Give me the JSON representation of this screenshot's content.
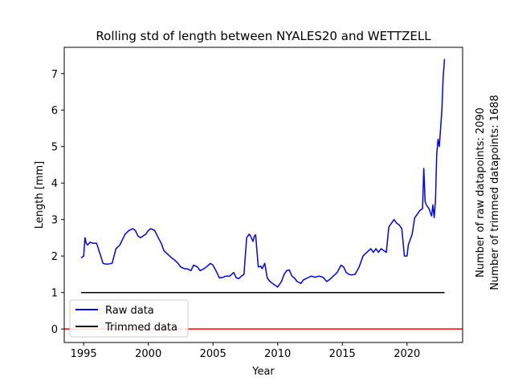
{
  "chart_data": {
    "type": "line",
    "title": "Rolling std of length between NYALES20 and WETTZELL",
    "xlabel": "Year",
    "ylabel": "Length [mm]",
    "xlim": [
      1993.5,
      2024.3
    ],
    "ylim": [
      -0.37,
      7.72
    ],
    "x_ticks": [
      1995,
      2000,
      2005,
      2010,
      2015,
      2020
    ],
    "y_ticks": [
      0,
      1,
      2,
      3,
      4,
      5,
      6,
      7
    ],
    "grid": false,
    "legend_position": "lower-left",
    "side_annotations": [
      "Number of raw datapoints: 2090",
      "Number of trimmed datapoints: 1688"
    ],
    "series": [
      {
        "name": "Raw data",
        "color": "#0000ff",
        "x": [
          1994.8,
          1995.0,
          1995.1,
          1995.2,
          1995.3,
          1995.5,
          1995.7,
          1996.0,
          1996.5,
          1996.7,
          1996.9,
          1997.2,
          1997.5,
          1997.8,
          1998.0,
          1998.2,
          1998.5,
          1998.8,
          1999.0,
          1999.2,
          1999.4,
          1999.6,
          1999.8,
          2000.0,
          2000.2,
          2000.5,
          2000.7,
          2001.0,
          2001.2,
          2001.5,
          2001.8,
          2002.0,
          2002.3,
          2002.5,
          2002.8,
          2003.0,
          2003.3,
          2003.5,
          2003.8,
          2004.0,
          2004.3,
          2004.5,
          2004.8,
          2005.0,
          2005.3,
          2005.5,
          2005.8,
          2006.0,
          2006.3,
          2006.6,
          2006.8,
          2007.0,
          2007.2,
          2007.4,
          2007.6,
          2007.8,
          2007.9,
          2008.1,
          2008.2,
          2008.3,
          2008.5,
          2008.7,
          2008.8,
          2009.0,
          2009.2,
          2009.4,
          2009.6,
          2009.8,
          2010.0,
          2010.3,
          2010.5,
          2010.7,
          2010.9,
          2011.1,
          2011.3,
          2011.5,
          2011.8,
          2012.0,
          2012.3,
          2012.6,
          2012.9,
          2013.2,
          2013.5,
          2013.8,
          2014.0,
          2014.3,
          2014.6,
          2014.9,
          2015.1,
          2015.3,
          2015.5,
          2015.7,
          2016.0,
          2016.3,
          2016.6,
          2016.9,
          2017.2,
          2017.4,
          2017.6,
          2017.8,
          2018.0,
          2018.2,
          2018.4,
          2018.6,
          2018.8,
          2019.0,
          2019.2,
          2019.4,
          2019.6,
          2019.8,
          2020.0,
          2020.1,
          2020.2,
          2020.4,
          2020.6,
          2020.8,
          2021.0,
          2021.2,
          2021.3,
          2021.4,
          2021.5,
          2021.7,
          2021.9,
          2022.0,
          2022.1,
          2022.2,
          2022.3,
          2022.4,
          2022.5,
          2022.6,
          2022.7,
          2022.8,
          2022.9
        ],
        "values": [
          1.95,
          2.0,
          2.5,
          2.35,
          2.3,
          2.38,
          2.35,
          2.35,
          1.8,
          1.78,
          1.78,
          1.8,
          2.2,
          2.3,
          2.45,
          2.6,
          2.7,
          2.75,
          2.7,
          2.55,
          2.5,
          2.55,
          2.6,
          2.7,
          2.75,
          2.7,
          2.55,
          2.35,
          2.15,
          2.05,
          1.95,
          1.9,
          1.8,
          1.7,
          1.65,
          1.65,
          1.6,
          1.75,
          1.7,
          1.6,
          1.65,
          1.7,
          1.8,
          1.75,
          1.55,
          1.4,
          1.42,
          1.45,
          1.45,
          1.55,
          1.4,
          1.38,
          1.45,
          1.5,
          2.5,
          2.6,
          2.55,
          2.4,
          2.55,
          2.58,
          1.7,
          1.72,
          1.65,
          1.8,
          1.4,
          1.3,
          1.25,
          1.2,
          1.15,
          1.3,
          1.5,
          1.6,
          1.62,
          1.45,
          1.4,
          1.3,
          1.25,
          1.35,
          1.4,
          1.45,
          1.42,
          1.45,
          1.42,
          1.3,
          1.35,
          1.45,
          1.55,
          1.75,
          1.7,
          1.55,
          1.5,
          1.48,
          1.5,
          1.7,
          2.0,
          2.1,
          2.2,
          2.1,
          2.2,
          2.1,
          2.2,
          2.15,
          2.1,
          2.8,
          2.9,
          3.0,
          2.9,
          2.85,
          2.75,
          2.0,
          2.0,
          2.3,
          2.4,
          2.6,
          3.05,
          3.15,
          3.25,
          3.3,
          4.4,
          3.5,
          3.4,
          3.3,
          3.1,
          3.4,
          3.05,
          3.5,
          4.8,
          5.2,
          5.0,
          5.5,
          6.0,
          6.9,
          7.4
        ]
      },
      {
        "name": "Trimmed data",
        "color": "#000000",
        "x": [
          1994.8,
          2022.9
        ],
        "values": [
          1.0,
          1.0
        ]
      }
    ],
    "reference_line": {
      "y": 0,
      "color": "#ff0000"
    }
  }
}
